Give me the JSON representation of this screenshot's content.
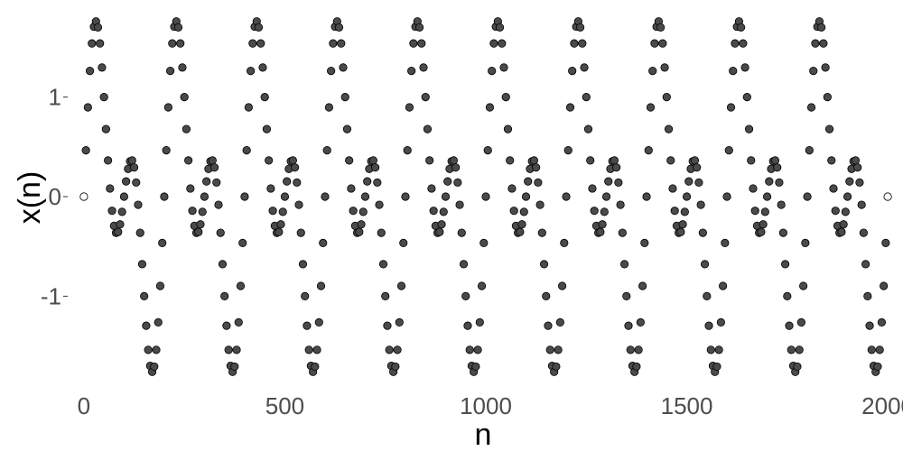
{
  "chart_data": {
    "type": "scatter",
    "xlabel": "n",
    "ylabel": "x(n)",
    "xlim": [
      -20,
      2020
    ],
    "ylim": [
      -1.83,
      1.83
    ],
    "xticks": [
      0,
      500,
      1000,
      1500,
      2000
    ],
    "xtick_labels": [
      "0",
      "500",
      "1000",
      "1500",
      "2000"
    ],
    "yticks": [
      -1,
      0,
      1
    ],
    "ytick_labels": [
      "-1",
      "0",
      "1"
    ],
    "grid": false,
    "legend": "none",
    "marker": "open-circle",
    "colors": {
      "marker_fill": "#4a4a4a",
      "marker_stroke": "#000000",
      "first_last_fill": "#ffffff",
      "axis_text": "#4d4d4d"
    },
    "signal": {
      "formula": "x(n) = sin(2*pi*n/200) + sin(2*pi*n/100)",
      "n_start": 0,
      "n_end": 2000,
      "n_step": 5,
      "components": [
        {
          "amplitude": 1,
          "period": 200
        },
        {
          "amplitude": 1,
          "period": 100
        }
      ]
    }
  }
}
